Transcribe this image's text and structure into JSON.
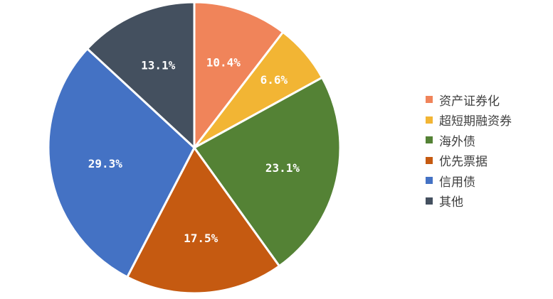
{
  "chart_data": {
    "type": "pie",
    "categories": [
      "资产证券化",
      "超短期融资券",
      "海外债",
      "优先票据",
      "信用债",
      "其他"
    ],
    "values": [
      10.4,
      6.6,
      23.1,
      17.5,
      29.3,
      13.1
    ],
    "labels": [
      "10.4%",
      "6.6%",
      "23.1%",
      "17.5%",
      "29.3%",
      "13.1%"
    ],
    "colors": [
      "#F0845A",
      "#F2B534",
      "#548235",
      "#C55A11",
      "#4472C4",
      "#44505F"
    ],
    "start": "top",
    "direction": "clockwise",
    "legend_position": "right"
  }
}
